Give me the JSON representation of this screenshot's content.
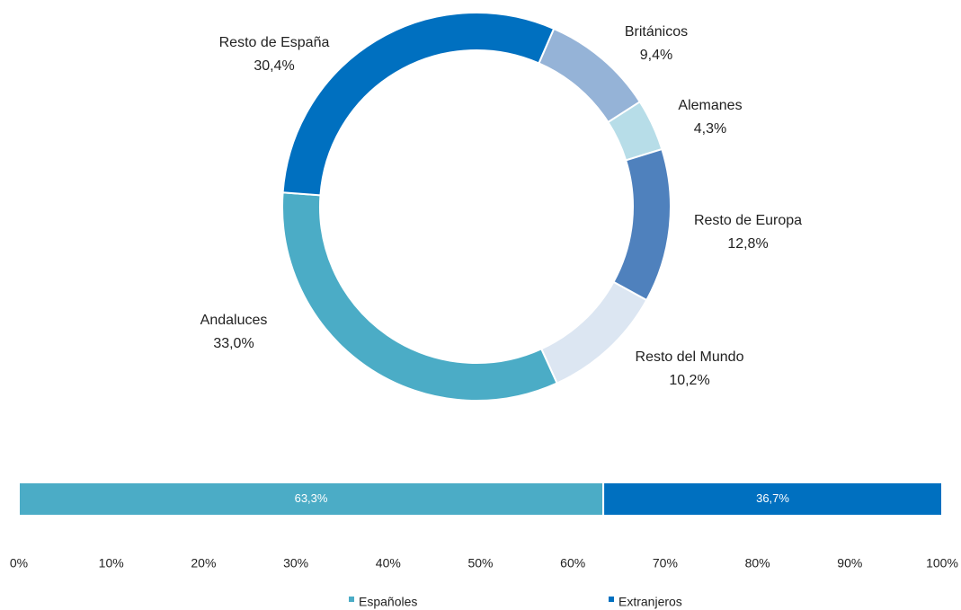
{
  "chart_data": [
    {
      "type": "donut",
      "categories": [
        "Británicos",
        "Alemanes",
        "Resto de Europa",
        "Resto del Mundo",
        "Andaluces",
        "Resto de España"
      ],
      "values": [
        9.4,
        4.3,
        12.8,
        10.2,
        33.0,
        30.4
      ],
      "value_labels": [
        "9,4%",
        "4,3%",
        "12,8%",
        "10,2%",
        "33,0%",
        "30,4%"
      ],
      "colors": [
        "#95b3d7",
        "#b7dde8",
        "#4f81bd",
        "#dce6f2",
        "#4bacc6",
        "#0070c0"
      ]
    },
    {
      "type": "stacked_bar_horizontal",
      "series": [
        {
          "name": "Españoles",
          "color": "#4bacc6",
          "values": [
            63.3
          ],
          "value_labels": [
            "63,3%"
          ]
        },
        {
          "name": "Extranjeros",
          "color": "#0070c0",
          "values": [
            36.7
          ],
          "value_labels": [
            "36,7%"
          ]
        }
      ],
      "xlim": [
        0,
        100
      ],
      "xticks": [
        {
          "value": 0,
          "label": "0%"
        },
        {
          "value": 10,
          "label": "10%"
        },
        {
          "value": 20,
          "label": "20%"
        },
        {
          "value": 30,
          "label": "30%"
        },
        {
          "value": 40,
          "label": "40%"
        },
        {
          "value": 50,
          "label": "50%"
        },
        {
          "value": 60,
          "label": "60%"
        },
        {
          "value": 70,
          "label": "70%"
        },
        {
          "value": 80,
          "label": "80%"
        },
        {
          "value": 90,
          "label": "90%"
        },
        {
          "value": 100,
          "label": "100%"
        }
      ],
      "legend": "bottom"
    }
  ]
}
